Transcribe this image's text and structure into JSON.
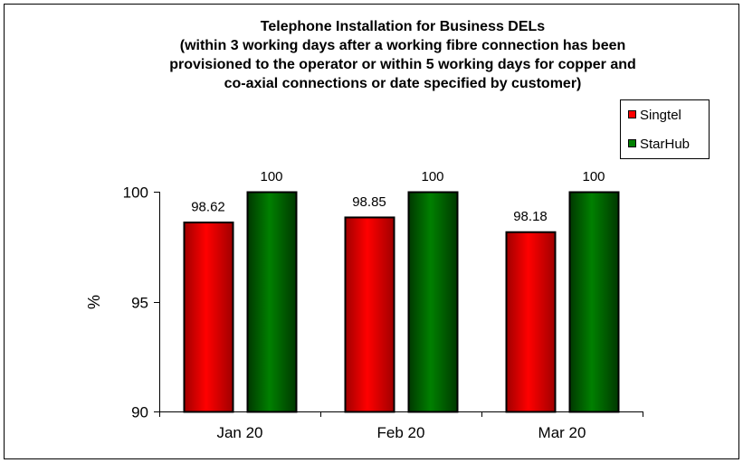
{
  "chart_data": {
    "type": "bar",
    "title": [
      "Telephone Installation for Business DELs",
      "(within 3 working days after a working fibre connection has been",
      "provisioned to the operator or within 5 working days for copper and",
      "co-axial connections or date specified by customer)"
    ],
    "xlabel": "",
    "ylabel": "%",
    "ylim": [
      90,
      100
    ],
    "yticks": [
      "90",
      "95",
      "100"
    ],
    "categories": [
      "Jan 20",
      "Feb 20",
      "Mar 20"
    ],
    "series": [
      {
        "name": "Singtel",
        "values": [
          98.62,
          98.85,
          98.18
        ],
        "labels": [
          "98.62",
          "98.85",
          "98.18"
        ],
        "color": "#ff0000"
      },
      {
        "name": "StarHub",
        "values": [
          100,
          100,
          100
        ],
        "labels": [
          "100",
          "100",
          "100"
        ],
        "color": "#008000"
      }
    ],
    "grid": false,
    "legend": "top-right"
  }
}
